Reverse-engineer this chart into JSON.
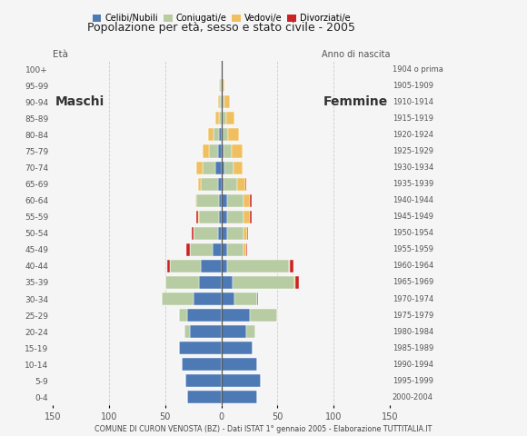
{
  "age_groups": [
    "0-4",
    "5-9",
    "10-14",
    "15-19",
    "20-24",
    "25-29",
    "30-34",
    "35-39",
    "40-44",
    "45-49",
    "50-54",
    "55-59",
    "60-64",
    "65-69",
    "70-74",
    "75-79",
    "80-84",
    "85-89",
    "90-94",
    "95-99",
    "100+"
  ],
  "birth_years": [
    "2000-2004",
    "1995-1999",
    "1990-1994",
    "1985-1989",
    "1980-1984",
    "1975-1979",
    "1970-1974",
    "1965-1969",
    "1960-1964",
    "1955-1959",
    "1950-1954",
    "1945-1949",
    "1940-1944",
    "1935-1939",
    "1930-1934",
    "1925-1929",
    "1920-1924",
    "1915-1919",
    "1910-1914",
    "1905-1909",
    "1904 o prima"
  ],
  "males_celibe": [
    30,
    32,
    35,
    38,
    28,
    30,
    25,
    20,
    18,
    8,
    3,
    2,
    2,
    3,
    5,
    3,
    2,
    0,
    0,
    0,
    0
  ],
  "males_coniugato": [
    0,
    0,
    0,
    0,
    5,
    8,
    28,
    30,
    28,
    20,
    22,
    18,
    20,
    15,
    12,
    8,
    5,
    2,
    1,
    1,
    0
  ],
  "males_vedovo": [
    0,
    0,
    0,
    0,
    0,
    0,
    0,
    0,
    0,
    0,
    0,
    1,
    1,
    3,
    5,
    6,
    5,
    3,
    2,
    1,
    0
  ],
  "males_divorziato": [
    0,
    0,
    0,
    0,
    0,
    0,
    0,
    0,
    2,
    3,
    1,
    1,
    0,
    0,
    0,
    0,
    0,
    0,
    0,
    0,
    0
  ],
  "females_nubile": [
    32,
    35,
    32,
    28,
    22,
    25,
    12,
    10,
    5,
    5,
    5,
    5,
    5,
    2,
    3,
    2,
    0,
    1,
    1,
    0,
    0
  ],
  "females_coniugata": [
    0,
    0,
    0,
    0,
    8,
    25,
    20,
    55,
    55,
    15,
    15,
    15,
    15,
    12,
    8,
    7,
    6,
    3,
    2,
    1,
    0
  ],
  "females_vedova": [
    0,
    0,
    0,
    0,
    0,
    0,
    0,
    1,
    1,
    2,
    3,
    5,
    5,
    7,
    8,
    10,
    10,
    8,
    5,
    2,
    0
  ],
  "females_divorziata": [
    0,
    0,
    0,
    0,
    0,
    0,
    1,
    3,
    3,
    1,
    1,
    2,
    2,
    1,
    0,
    0,
    0,
    0,
    0,
    0,
    0
  ],
  "color_celibe": "#4d7ab5",
  "color_coniugato": "#b8cca4",
  "color_vedovo": "#f0c060",
  "color_divorziato": "#cc2222",
  "title": "Popolazione per età, sesso e stato civile - 2005",
  "subtitle": "COMUNE DI CURON VENOSTA (BZ) - Dati ISTAT 1° gennaio 2005 - Elaborazione TUTTITALIA.IT",
  "xlim": 150,
  "bg_color": "#f5f5f5"
}
